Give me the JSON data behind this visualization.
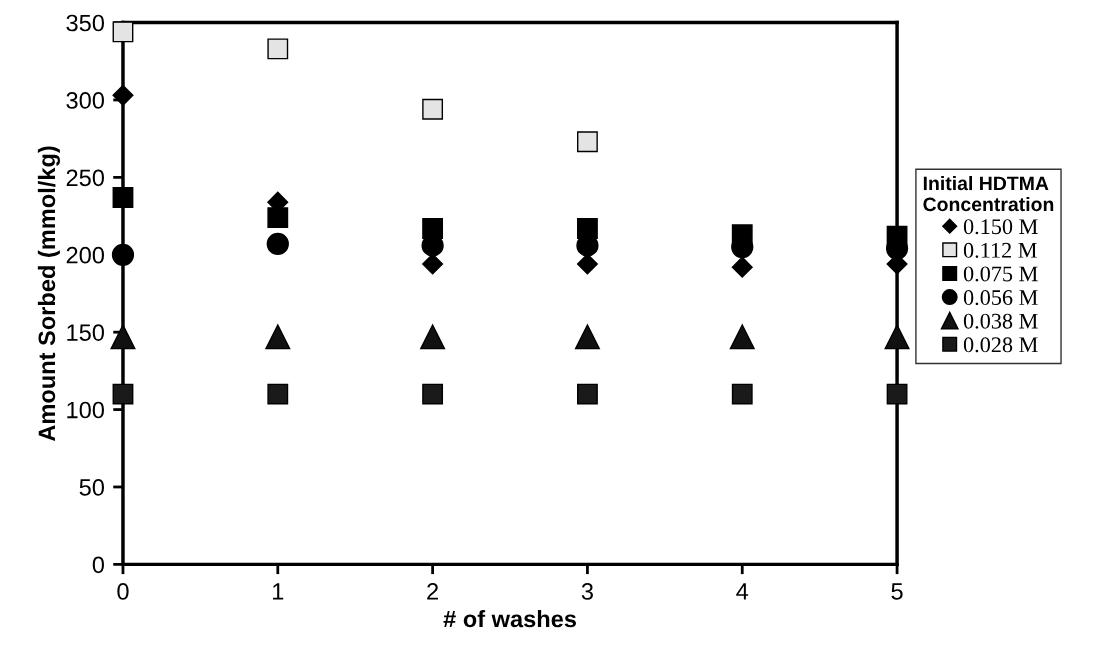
{
  "chart_data": {
    "type": "scatter",
    "xlabel": "# of washes",
    "ylabel": "Amount Sorbed (mmol/kg)",
    "legend_title": "Initial HDTMA\nConcentration",
    "legend": "right",
    "grid": false,
    "x": [
      0,
      1,
      2,
      3,
      4,
      5
    ],
    "xlim": [
      0,
      5
    ],
    "xticks": [
      0,
      1,
      2,
      3,
      4,
      5
    ],
    "ylim": [
      0,
      350
    ],
    "yticks": [
      0,
      50,
      100,
      150,
      200,
      250,
      300,
      350
    ],
    "series": [
      {
        "name": "0.150 M",
        "color": "#000000",
        "marker": "diamond",
        "values": [
          303,
          234,
          194,
          194,
          192,
          194
        ]
      },
      {
        "name": "0.112 M",
        "color": "#e4e4e4",
        "marker": "square",
        "x": [
          0,
          1,
          2,
          3
        ],
        "values": [
          344,
          333,
          294,
          273
        ]
      },
      {
        "name": "0.075 M",
        "color": "#000000",
        "marker": "square",
        "values": [
          237,
          224,
          217,
          217,
          213,
          212
        ]
      },
      {
        "name": "0.056 M",
        "color": "#000000",
        "marker": "circle",
        "values": [
          200,
          207,
          206,
          206,
          205,
          204
        ]
      },
      {
        "name": "0.038 M",
        "color": "#111111",
        "marker": "triangle",
        "values": [
          147,
          147,
          147,
          147,
          147,
          147
        ]
      },
      {
        "name": "0.028 M",
        "color": "#1a1a1a",
        "marker": "square",
        "values": [
          110,
          110,
          110,
          110,
          110,
          110
        ]
      }
    ]
  }
}
